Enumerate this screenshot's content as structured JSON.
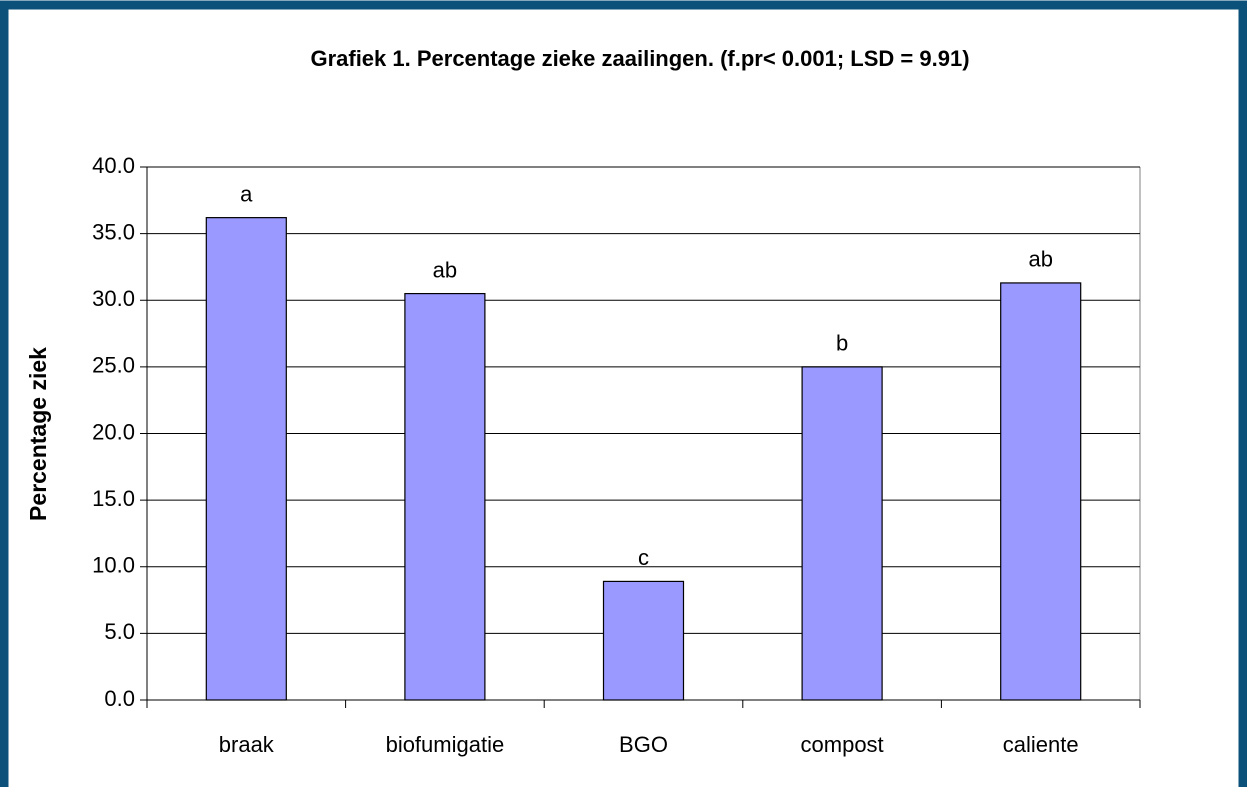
{
  "chart_data": {
    "type": "bar",
    "title": "Grafiek 1. Percentage zieke zaailingen. (f.pr< 0.001; LSD = 9.91)",
    "ylabel": "Percentage ziek",
    "categories": [
      "braak",
      "biofumigatie",
      "BGO",
      "compost",
      "caliente"
    ],
    "values": [
      36.2,
      30.5,
      8.9,
      25.0,
      31.3
    ],
    "annotations": [
      "a",
      "ab",
      "c",
      "b",
      "ab"
    ],
    "color": "#9999ff",
    "ylim": [
      0,
      40
    ],
    "yticks": [
      {
        "value": 0,
        "label": "0.0"
      },
      {
        "value": 5,
        "label": "5.0"
      },
      {
        "value": 10,
        "label": "10.0"
      },
      {
        "value": 15,
        "label": "15.0"
      },
      {
        "value": 20,
        "label": "20.0"
      },
      {
        "value": 25,
        "label": "25.0"
      },
      {
        "value": 30,
        "label": "30.0"
      },
      {
        "value": 35,
        "label": "35.0"
      },
      {
        "value": 40,
        "label": "40.0"
      }
    ],
    "grid": true
  }
}
